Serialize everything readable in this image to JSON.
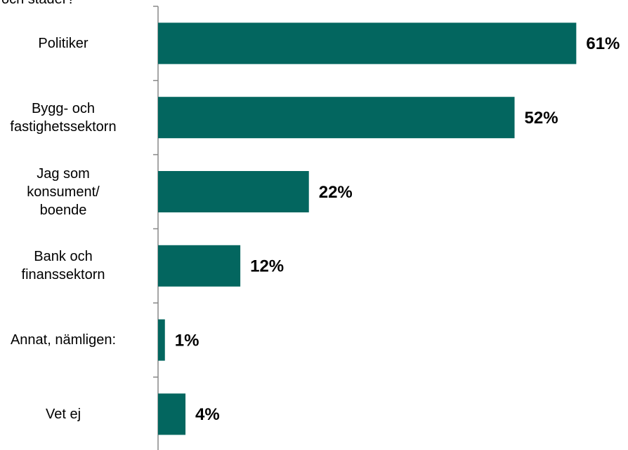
{
  "chart_data": {
    "type": "bar",
    "orientation": "horizontal",
    "title": "och städer?",
    "categories": [
      "Politiker",
      "Bygg- och\nfastighetssektorn",
      "Jag som\nkonsument/\nboende",
      "Bank och\nfinanssektorn",
      "Annat, nämligen:",
      "Vet ej"
    ],
    "values": [
      61,
      52,
      22,
      12,
      1,
      4
    ],
    "value_labels": [
      "61%",
      "52%",
      "22%",
      "12%",
      "1%",
      "4%"
    ],
    "color": "#03665f"
  }
}
